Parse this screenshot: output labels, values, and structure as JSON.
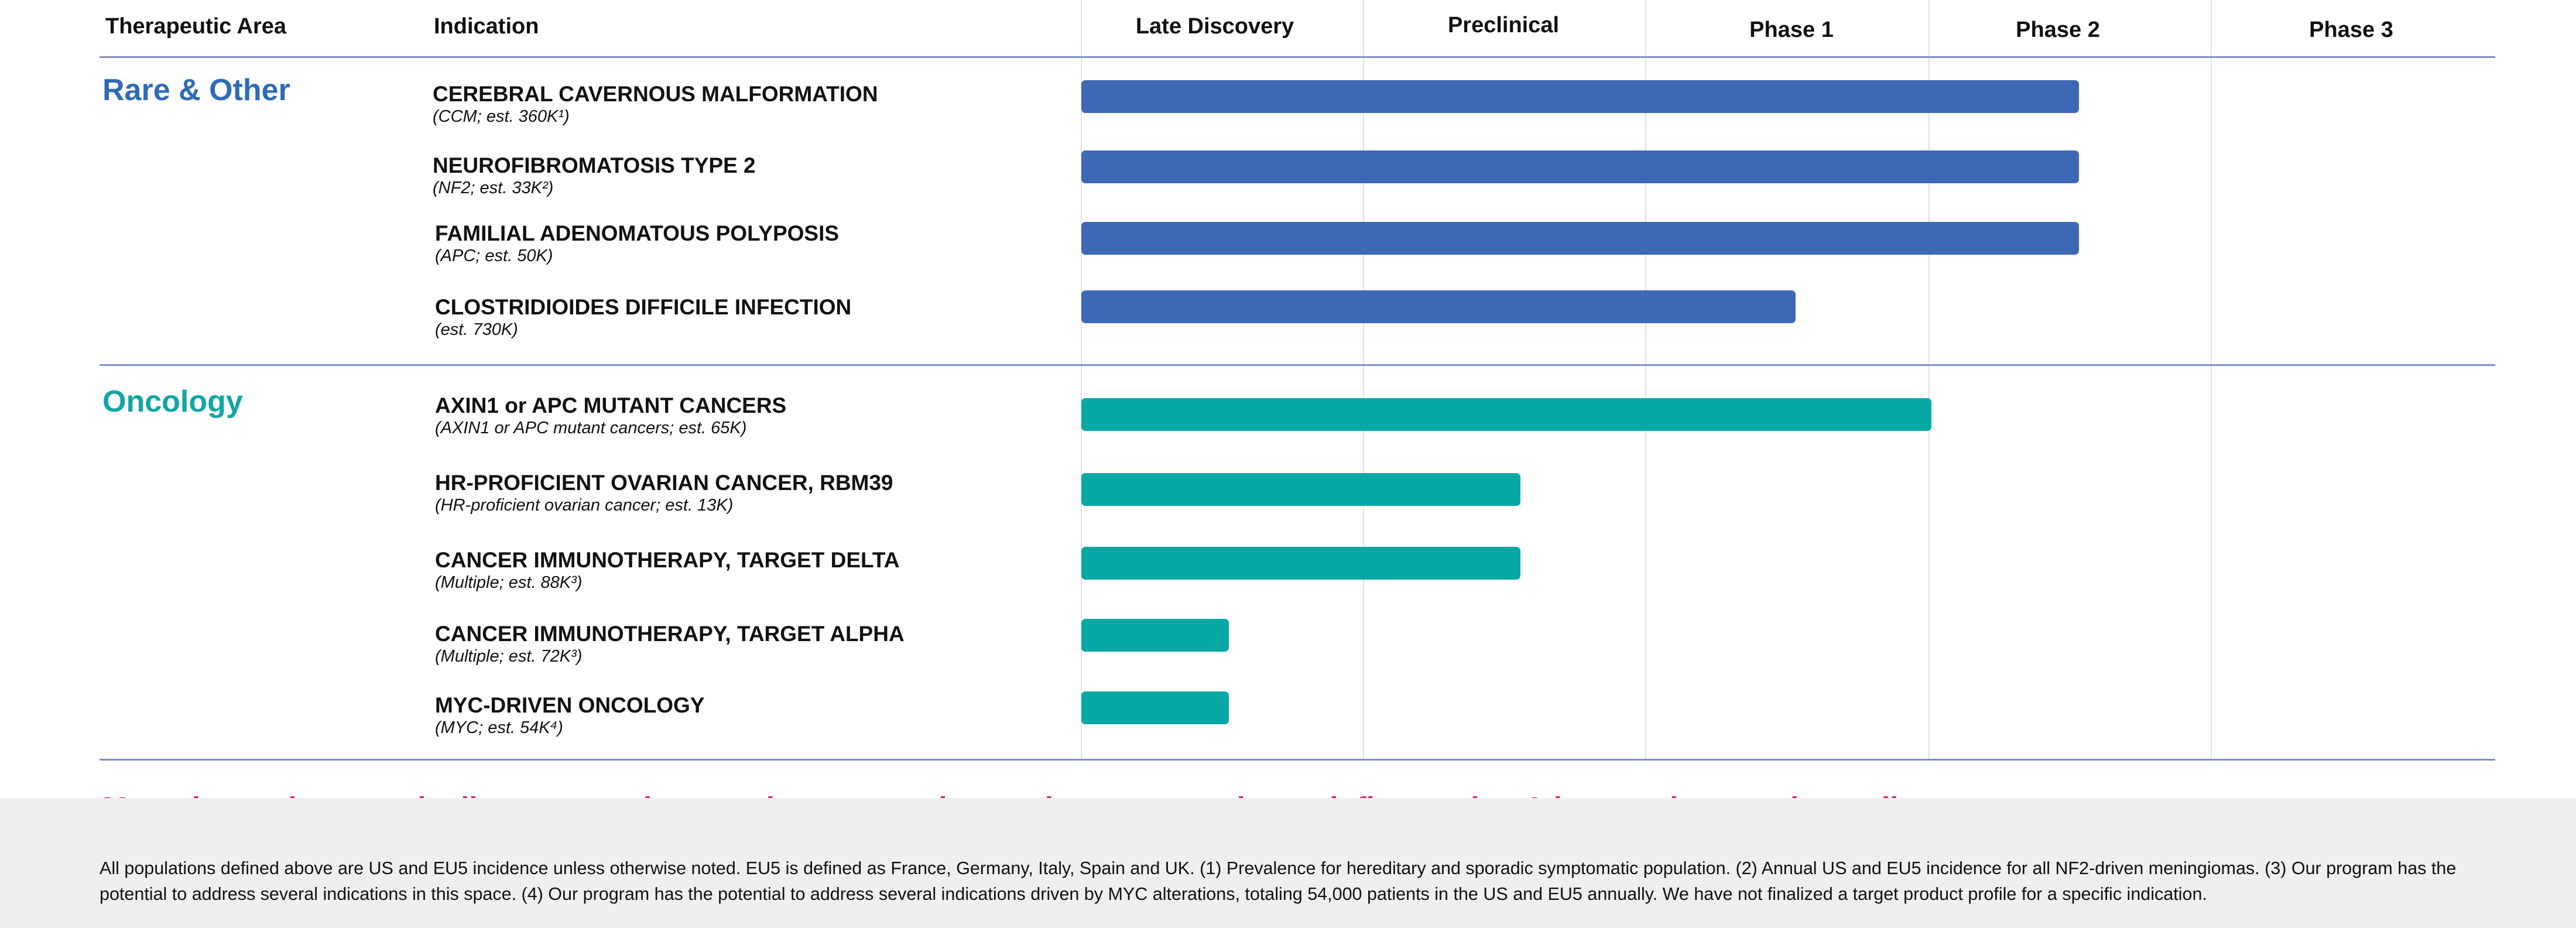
{
  "chart_data": {
    "type": "bar",
    "orientation": "horizontal",
    "header": {
      "area": "Therapeutic Area",
      "indication": "Indication"
    },
    "stages": [
      "Late Discovery",
      "Preclinical",
      "Phase 1",
      "Phase 2",
      "Phase 3"
    ],
    "groups": [
      {
        "name": "Rare & Other",
        "color": "#3d68b5",
        "rows": [
          {
            "title": "CEREBRAL CAVERNOUS MALFORMATION",
            "sub": "(CCM; est. 360K¹)",
            "value": 3.52
          },
          {
            "title": "NEUROFIBROMATOSIS TYPE 2",
            "sub": "(NF2; est. 33K²)",
            "value": 3.52
          },
          {
            "title": "FAMILIAL ADENOMATOUS POLYPOSIS",
            "sub": "(APC; est. 50K)",
            "value": 3.52
          },
          {
            "title": "CLOSTRIDIOIDES DIFFICILE INFECTION",
            "sub": "(est. 730K)",
            "value": 2.52
          }
        ]
      },
      {
        "name": "Oncology",
        "color": "#08a8a5",
        "rows": [
          {
            "title": "AXIN1 or APC MUTANT CANCERS",
            "sub": "(AXIN1 or APC mutant cancers; est. 65K)",
            "value": 3.0
          },
          {
            "title": "HR-PROFICIENT OVARIAN CANCER, RBM39",
            "sub": "(HR-proficient ovarian cancer; est. 13K)",
            "value": 1.55
          },
          {
            "title": "CANCER IMMUNOTHERAPY, TARGET DELTA",
            "sub": "(Multiple; est. 88K³)",
            "value": 1.55
          },
          {
            "title": "CANCER IMMUNOTHERAPY, TARGET ALPHA",
            "sub": "(Multiple; est. 72K³)",
            "value": 0.52
          },
          {
            "title": "MYC-DRIVEN ONCOLOGY",
            "sub": "(MYC; est. 54K⁴)",
            "value": 0.52
          }
        ]
      }
    ],
    "grid": true
  },
  "tagline": "More than a dozen early discovery and research programs in oncology, neuroscience, inflammation & immunology, and rare disease",
  "footnote": "All populations defined above are US and EU5 incidence unless otherwise noted. EU5 is defined as France, Germany, Italy, Spain and UK. (1) Prevalence for hereditary and sporadic symptomatic population. (2) Annual US and EU5 incidence for all NF2-driven meningiomas. (3) Our program has the potential to address several indications in this space. (4) Our program has the potential to address several indications driven by MYC alterations, totaling 54,000 patients in the US and EU5 annually. We have not finalized a target product profile for a specific indication."
}
